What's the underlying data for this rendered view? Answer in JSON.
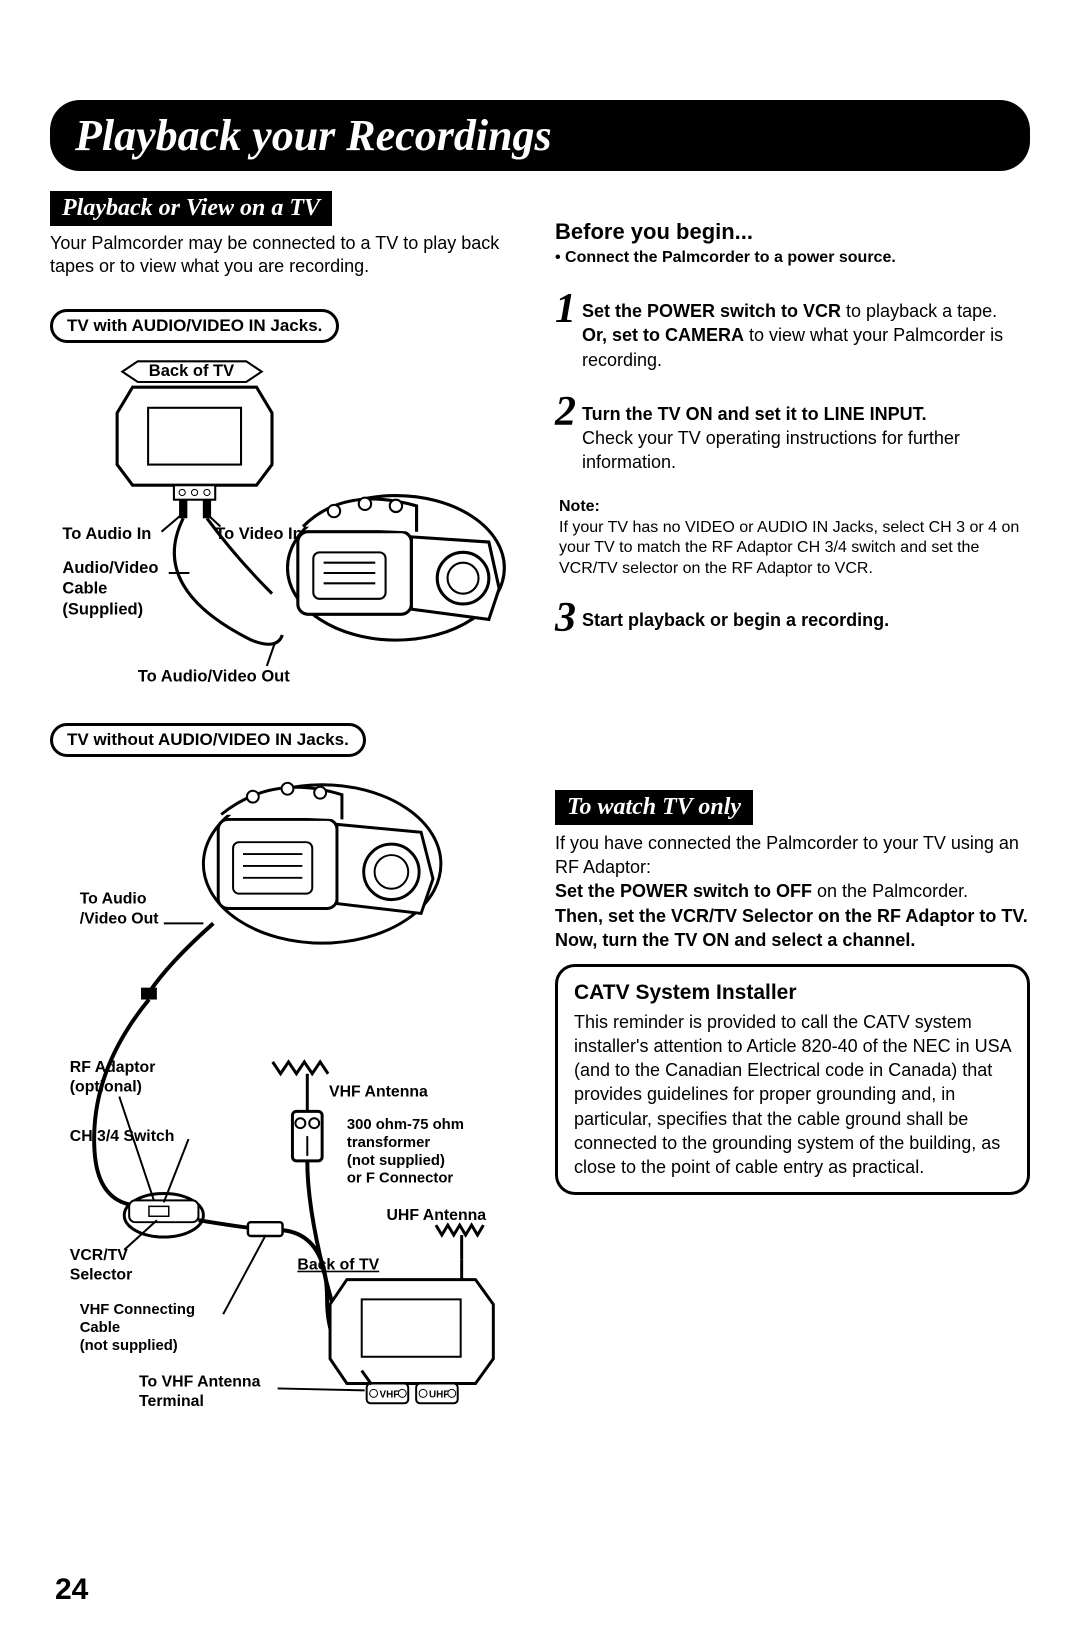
{
  "main_title": "Playback your Recordings",
  "left": {
    "section_header": "Playback or View on a TV",
    "intro": "Your Palmcorder may be connected to a TV to play back tapes or to view what you are recording.",
    "bullet1": "TV with AUDIO/VIDEO IN Jacks.",
    "bullet2": "TV without AUDIO/VIDEO IN Jacks.",
    "diagram1": {
      "back_of_tv": "Back of TV",
      "to_audio_in": "To Audio In",
      "to_video_in": "To Video In",
      "av_cable1": "Audio/Video",
      "av_cable2": "Cable",
      "av_cable3": "(Supplied)",
      "to_av_out": "To Audio/Video Out"
    },
    "diagram2": {
      "to_av_out1": "To Audio",
      "to_av_out2": "/Video Out",
      "rf_adaptor1": "RF Adaptor",
      "rf_adaptor2": "(optional)",
      "vhf_antenna": "VHF Antenna",
      "ch34": "CH 3/4 Switch",
      "transformer1": "300 ohm-75 ohm",
      "transformer2": "transformer",
      "transformer3": "(not supplied)",
      "transformer4": "or F Connector",
      "uhf_antenna": "UHF Antenna",
      "vcrtv1": "VCR/TV",
      "vcrtv2": "Selector",
      "back_of_tv": "Back of TV",
      "vhf_cable1": "VHF Connecting",
      "vhf_cable2": "Cable",
      "vhf_cable3": "(not supplied)",
      "to_vhf1": "To VHF Antenna",
      "to_vhf2": "Terminal",
      "vhf_label": "VHF",
      "uhf_label": "UHF"
    }
  },
  "right": {
    "before_heading": "Before you begin...",
    "before_bullet": "• Connect the Palmcorder to a power source.",
    "steps": {
      "s1": {
        "num": "1",
        "text": "<b>Set the POWER switch to VCR</b> to playback a tape.<br><b>Or, set to CAMERA</b> to view what your Palmcorder is recording."
      },
      "s2": {
        "num": "2",
        "text": "<b>Turn the TV ON and set it to LINE INPUT.</b><br>Check your TV operating instructions for further information."
      },
      "s3": {
        "num": "3",
        "text": "<b>Start playback or begin a recording.</b>"
      }
    },
    "note_label": "Note:",
    "note_text": "If your TV has no VIDEO or AUDIO IN Jacks, select CH 3 or 4 on your TV to match the RF Adaptor CH 3/4 switch and set the VCR/TV selector on the RF Adaptor to VCR.",
    "watch_header": "To watch TV only",
    "watch_text": "If you have connected the Palmcorder to your TV using an RF Adaptor:<br><b>Set the POWER switch to OFF</b> on the Palmcorder.<br><b>Then, set the VCR/TV Selector on the RF Adaptor to TV.<br>Now, turn the TV ON and select a channel.</b>",
    "catv_title": "CATV System Installer",
    "catv_text": "This reminder is provided to call the CATV system installer's attention to Article 820-40 of the NEC in USA (and to the Canadian Electrical code in Canada) that provides guidelines for proper grounding and, in particular, specifies that the cable ground shall be connected to the grounding system of the building, as close to the point of cable entry as practical."
  },
  "page_number": "24",
  "colors": {
    "black": "#000000",
    "white": "#ffffff"
  }
}
